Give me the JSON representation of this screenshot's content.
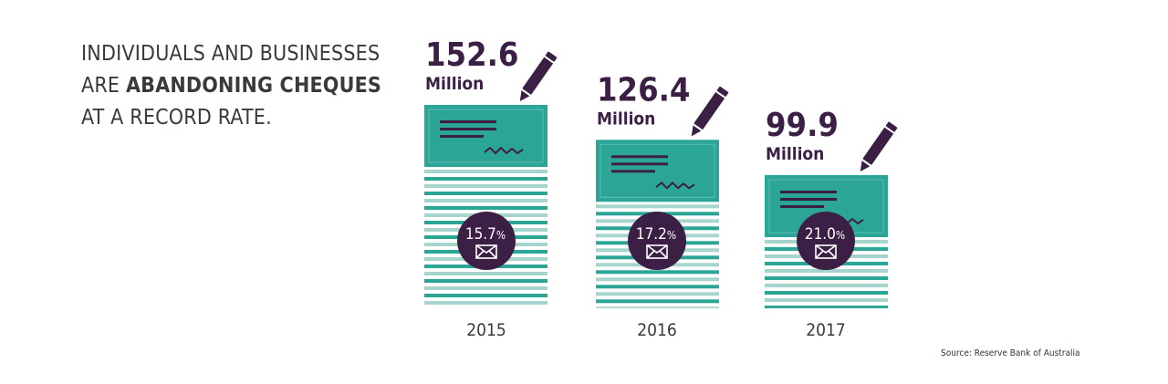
{
  "headline": {
    "line1": "INDIVIDUALS AND BUSINESSES",
    "line2_prefix": "ARE ",
    "line2_bold": "ABANDONING CHEQUES",
    "line3": "AT A RECORD RATE."
  },
  "source": "Source: Reserve Bank of Australia",
  "colors": {
    "teal": "#2ba596",
    "teal_light": "#a6d5cd",
    "purple": "#3b1f45",
    "text": "#3a3a3a"
  },
  "chart_data": {
    "type": "bar",
    "categories": [
      "2015",
      "2016",
      "2017"
    ],
    "values": [
      152.6,
      126.4,
      99.9
    ],
    "value_labels": [
      "152.6",
      "126.4",
      "99.9"
    ],
    "unit_label": "Million",
    "percent_labels": [
      "15.7%",
      "17.2%",
      "21.0%"
    ],
    "percent_values": [
      15.7,
      17.2,
      21.0
    ],
    "icons": [
      "cheque-icon",
      "pen-icon",
      "envelope-icon"
    ]
  }
}
